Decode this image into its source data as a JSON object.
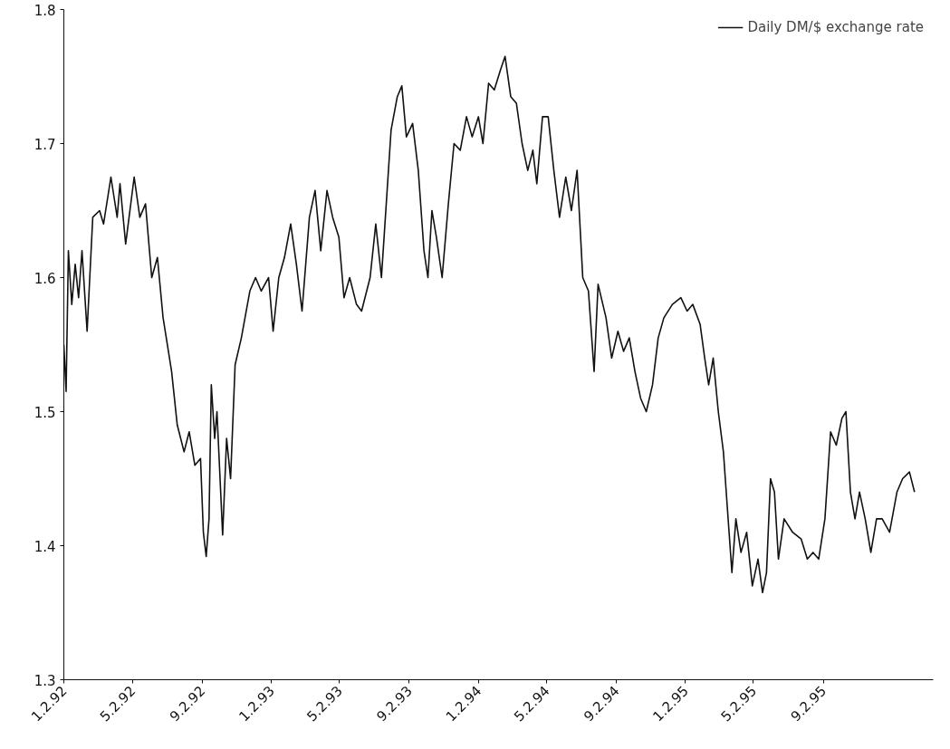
{
  "chart_data": {
    "type": "line",
    "legend": "top right",
    "grid": false,
    "marker": "none",
    "line_style": "solid",
    "xlim": [
      "1992-01-02",
      "1996-03-14"
    ],
    "ylim": [
      1.3,
      1.8
    ],
    "yticks": [
      1.3,
      1.4,
      1.5,
      1.6,
      1.7,
      1.8
    ],
    "xticks": [
      {
        "value": "1992-01-02",
        "label": "1.2.92"
      },
      {
        "value": "1992-05-02",
        "label": "5.2.92"
      },
      {
        "value": "1992-09-02",
        "label": "9.2.92"
      },
      {
        "value": "1993-01-02",
        "label": "1.2.93"
      },
      {
        "value": "1993-05-02",
        "label": "5.2.93"
      },
      {
        "value": "1993-09-02",
        "label": "9.2.93"
      },
      {
        "value": "1994-01-02",
        "label": "1.2.94"
      },
      {
        "value": "1994-05-02",
        "label": "5.2.94"
      },
      {
        "value": "1994-09-02",
        "label": "9.2.94"
      },
      {
        "value": "1995-01-02",
        "label": "1.2.95"
      },
      {
        "value": "1995-05-02",
        "label": "5.2.95"
      },
      {
        "value": "1995-09-02",
        "label": "9.2.95"
      }
    ],
    "series": [
      {
        "name": "Daily DM/$ exchange rate",
        "color": "#111111",
        "x": [
          "1992-01-02",
          "1992-01-06",
          "1992-01-10",
          "1992-01-16",
          "1992-01-22",
          "1992-01-28",
          "1992-02-03",
          "1992-02-12",
          "1992-02-22",
          "1992-03-05",
          "1992-03-12",
          "1992-03-25",
          "1992-04-05",
          "1992-04-10",
          "1992-04-20",
          "1992-05-05",
          "1992-05-15",
          "1992-05-25",
          "1992-06-05",
          "1992-06-15",
          "1992-06-25",
          "1992-07-10",
          "1992-07-20",
          "1992-08-01",
          "1992-08-10",
          "1992-08-20",
          "1992-08-30",
          "1992-09-04",
          "1992-09-09",
          "1992-09-14",
          "1992-09-18",
          "1992-09-24",
          "1992-09-28",
          "1992-10-08",
          "1992-10-15",
          "1992-10-22",
          "1992-10-30",
          "1992-11-10",
          "1992-11-25",
          "1992-12-05",
          "1992-12-15",
          "1992-12-28",
          "1993-01-05",
          "1993-01-15",
          "1993-01-25",
          "1993-02-05",
          "1993-02-15",
          "1993-02-25",
          "1993-03-10",
          "1993-03-20",
          "1993-03-30",
          "1993-04-10",
          "1993-04-20",
          "1993-05-01",
          "1993-05-10",
          "1993-05-20",
          "1993-06-01",
          "1993-06-10",
          "1993-06-25",
          "1993-07-05",
          "1993-07-15",
          "1993-08-01",
          "1993-08-12",
          "1993-08-20",
          "1993-08-28",
          "1993-09-08",
          "1993-09-18",
          "1993-09-28",
          "1993-10-05",
          "1993-10-12",
          "1993-10-20",
          "1993-10-30",
          "1993-11-10",
          "1993-11-20",
          "1993-12-01",
          "1993-12-12",
          "1993-12-22",
          "1994-01-02",
          "1994-01-10",
          "1994-01-20",
          "1994-01-30",
          "1994-02-10",
          "1994-02-18",
          "1994-02-28",
          "1994-03-10",
          "1994-03-20",
          "1994-03-30",
          "1994-04-08",
          "1994-04-15",
          "1994-04-25",
          "1994-05-05",
          "1994-05-15",
          "1994-05-25",
          "1994-06-05",
          "1994-06-15",
          "1994-06-25",
          "1994-07-05",
          "1994-07-15",
          "1994-07-25",
          "1994-08-01",
          "1994-08-15",
          "1994-08-25",
          "1994-09-05",
          "1994-09-15",
          "1994-09-25",
          "1994-10-05",
          "1994-10-15",
          "1994-10-25",
          "1994-11-05",
          "1994-11-15",
          "1994-11-25",
          "1994-12-10",
          "1994-12-25",
          "1995-01-05",
          "1995-01-15",
          "1995-01-28",
          "1995-02-05",
          "1995-02-12",
          "1995-02-20",
          "1995-03-01",
          "1995-03-10",
          "1995-03-20",
          "1995-03-25",
          "1995-04-01",
          "1995-04-10",
          "1995-04-20",
          "1995-04-30",
          "1995-05-10",
          "1995-05-18",
          "1995-05-25",
          "1995-06-01",
          "1995-06-08",
          "1995-06-15",
          "1995-06-25",
          "1995-07-10",
          "1995-07-25",
          "1995-08-05",
          "1995-08-15",
          "1995-08-25",
          "1995-09-05",
          "1995-09-15",
          "1995-09-25",
          "1995-10-05",
          "1995-10-12",
          "1995-10-20",
          "1995-10-28",
          "1995-11-05",
          "1995-11-15",
          "1995-11-25",
          "1995-12-05",
          "1995-12-15",
          "1995-12-28",
          "1996-01-10",
          "1996-01-20",
          "1996-02-01",
          "1996-02-10"
        ],
        "values": [
          1.55,
          1.515,
          1.62,
          1.58,
          1.61,
          1.585,
          1.62,
          1.56,
          1.645,
          1.65,
          1.64,
          1.675,
          1.645,
          1.67,
          1.625,
          1.675,
          1.645,
          1.655,
          1.6,
          1.615,
          1.57,
          1.53,
          1.49,
          1.47,
          1.485,
          1.46,
          1.465,
          1.41,
          1.392,
          1.42,
          1.52,
          1.48,
          1.5,
          1.408,
          1.48,
          1.45,
          1.535,
          1.555,
          1.59,
          1.6,
          1.59,
          1.6,
          1.56,
          1.6,
          1.615,
          1.64,
          1.61,
          1.575,
          1.645,
          1.665,
          1.62,
          1.665,
          1.645,
          1.63,
          1.585,
          1.6,
          1.58,
          1.575,
          1.6,
          1.64,
          1.6,
          1.71,
          1.735,
          1.743,
          1.705,
          1.715,
          1.68,
          1.62,
          1.6,
          1.65,
          1.63,
          1.6,
          1.655,
          1.7,
          1.695,
          1.72,
          1.705,
          1.72,
          1.7,
          1.745,
          1.74,
          1.755,
          1.765,
          1.735,
          1.73,
          1.7,
          1.68,
          1.695,
          1.67,
          1.72,
          1.72,
          1.68,
          1.645,
          1.675,
          1.65,
          1.68,
          1.6,
          1.59,
          1.53,
          1.595,
          1.57,
          1.54,
          1.56,
          1.545,
          1.555,
          1.53,
          1.51,
          1.5,
          1.52,
          1.555,
          1.57,
          1.58,
          1.585,
          1.575,
          1.58,
          1.565,
          1.54,
          1.52,
          1.54,
          1.5,
          1.47,
          1.41,
          1.38,
          1.42,
          1.395,
          1.41,
          1.37,
          1.39,
          1.365,
          1.38,
          1.45,
          1.44,
          1.39,
          1.42,
          1.41,
          1.405,
          1.39,
          1.395,
          1.39,
          1.42,
          1.485,
          1.475,
          1.495,
          1.5,
          1.44,
          1.42,
          1.44,
          1.42,
          1.395,
          1.42,
          1.42,
          1.41,
          1.44,
          1.45,
          1.455,
          1.44
        ]
      }
    ]
  }
}
